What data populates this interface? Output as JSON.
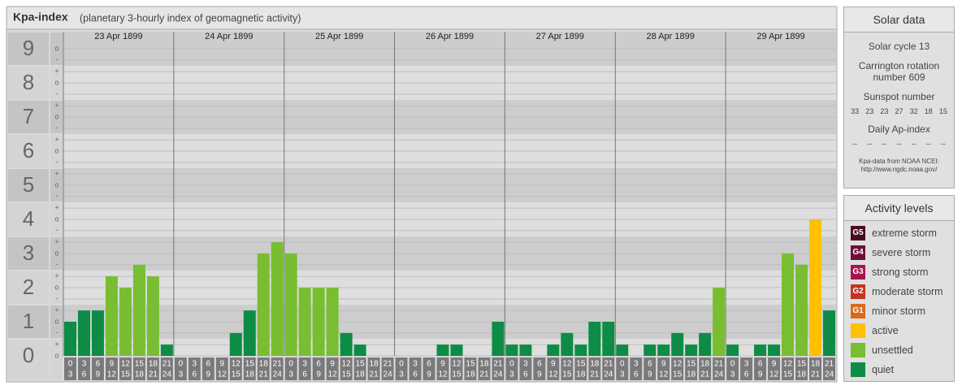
{
  "chart_data": {
    "type": "bar",
    "title": "Kpa-index",
    "subtitle": "(planetary 3-hourly index of geomagnetic activity)",
    "days": [
      "23 Apr 1899",
      "24 Apr 1899",
      "25 Apr 1899",
      "26 Apr 1899",
      "27 Apr 1899",
      "28 Apr 1899",
      "29 Apr 1899"
    ],
    "hours": [
      [
        "0",
        "3"
      ],
      [
        "3",
        "6"
      ],
      [
        "6",
        "9"
      ],
      [
        "9",
        "12"
      ],
      [
        "12",
        "15"
      ],
      [
        "15",
        "18"
      ],
      [
        "18",
        "21"
      ],
      [
        "21",
        "24"
      ]
    ],
    "values": [
      1,
      1.33,
      1.33,
      2.33,
      2,
      2.67,
      2.33,
      0.33,
      0,
      0,
      0,
      0,
      0.67,
      1.33,
      3,
      3.33,
      3,
      2,
      2,
      2,
      0.67,
      0.33,
      0,
      0,
      0,
      0,
      0,
      0.33,
      0.33,
      0,
      0,
      1,
      0.33,
      0.33,
      0,
      0.33,
      0.67,
      0.33,
      1,
      1,
      0.33,
      0,
      0.33,
      0.33,
      0.67,
      0.33,
      0.67,
      2,
      0.33,
      0,
      0.33,
      0.33,
      3,
      2.67,
      4,
      1.33
    ],
    "colors": [
      "#0d8c45",
      "#0d8c45",
      "#0d8c45",
      "#78be30",
      "#78be30",
      "#78be30",
      "#78be30",
      "#0d8c45",
      "#0d8c45",
      "#0d8c45",
      "#0d8c45",
      "#0d8c45",
      "#0d8c45",
      "#0d8c45",
      "#78be30",
      "#78be30",
      "#78be30",
      "#78be30",
      "#78be30",
      "#78be30",
      "#0d8c45",
      "#0d8c45",
      "#0d8c45",
      "#0d8c45",
      "#0d8c45",
      "#0d8c45",
      "#0d8c45",
      "#0d8c45",
      "#0d8c45",
      "#0d8c45",
      "#0d8c45",
      "#0d8c45",
      "#0d8c45",
      "#0d8c45",
      "#0d8c45",
      "#0d8c45",
      "#0d8c45",
      "#0d8c45",
      "#0d8c45",
      "#0d8c45",
      "#0d8c45",
      "#0d8c45",
      "#0d8c45",
      "#0d8c45",
      "#0d8c45",
      "#0d8c45",
      "#0d8c45",
      "#78be30",
      "#0d8c45",
      "#0d8c45",
      "#0d8c45",
      "#0d8c45",
      "#78be30",
      "#78be30",
      "#ffc000",
      "#0d8c45"
    ],
    "ylim": [
      0,
      9.5
    ],
    "yticks": [
      0,
      1,
      2,
      3,
      4,
      5,
      6,
      7,
      8,
      9
    ],
    "minor_yticks": [
      {
        "value": 0,
        "label": "o"
      },
      {
        "value": 0.33,
        "label": "+"
      },
      {
        "value": 0.67,
        "label": "-"
      },
      {
        "value": 1,
        "label": "o"
      },
      {
        "value": 1.33,
        "label": "+"
      },
      {
        "value": 1.67,
        "label": "-"
      },
      {
        "value": 2,
        "label": "o"
      },
      {
        "value": 2.33,
        "label": "+"
      },
      {
        "value": 2.67,
        "label": "-"
      },
      {
        "value": 3,
        "label": "o"
      },
      {
        "value": 3.33,
        "label": "+"
      },
      {
        "value": 3.67,
        "label": "-"
      },
      {
        "value": 4,
        "label": "o"
      },
      {
        "value": 4.33,
        "label": "+"
      },
      {
        "value": 4.67,
        "label": "-"
      },
      {
        "value": 5,
        "label": "o"
      },
      {
        "value": 5.33,
        "label": "+"
      },
      {
        "value": 5.67,
        "label": "-"
      },
      {
        "value": 6,
        "label": "o"
      },
      {
        "value": 6.33,
        "label": "+"
      },
      {
        "value": 6.67,
        "label": "-"
      },
      {
        "value": 7,
        "label": "o"
      },
      {
        "value": 7.33,
        "label": "+"
      },
      {
        "value": 7.67,
        "label": "-"
      },
      {
        "value": 8,
        "label": "o"
      },
      {
        "value": 8.33,
        "label": "+"
      },
      {
        "value": 8.67,
        "label": "-"
      },
      {
        "value": 9,
        "label": "o"
      }
    ],
    "grid": true
  },
  "solar_data": {
    "title": "Solar data",
    "cycle": "Solar cycle 13",
    "carrington": "Carrington rotation number 609",
    "sunspot_title": "Sunspot number",
    "sunspot_numbers": [
      33,
      23,
      23,
      27,
      32,
      18,
      15
    ],
    "ap_title": "Daily Ap-index",
    "ap_values": [
      "--",
      "--",
      "--",
      "--",
      "--",
      "--",
      "--"
    ],
    "source": "Kpa-data from NOAA NCEI:",
    "url": "http://www.ngdc.noaa.gov/"
  },
  "activity_levels": {
    "title": "Activity levels",
    "items": [
      {
        "badge": "G5",
        "label": "extreme storm",
        "color": "#4a0a22"
      },
      {
        "badge": "G4",
        "label": "severe storm",
        "color": "#6e0f3e"
      },
      {
        "badge": "G3",
        "label": "strong storm",
        "color": "#a8144c"
      },
      {
        "badge": "G2",
        "label": "moderate storm",
        "color": "#c8321e"
      },
      {
        "badge": "G1",
        "label": "minor storm",
        "color": "#d96b1a"
      },
      {
        "label": "active",
        "color": "#ffc000"
      },
      {
        "label": "unsettled",
        "color": "#78be30"
      },
      {
        "label": "quiet",
        "color": "#0d8c45"
      }
    ]
  }
}
